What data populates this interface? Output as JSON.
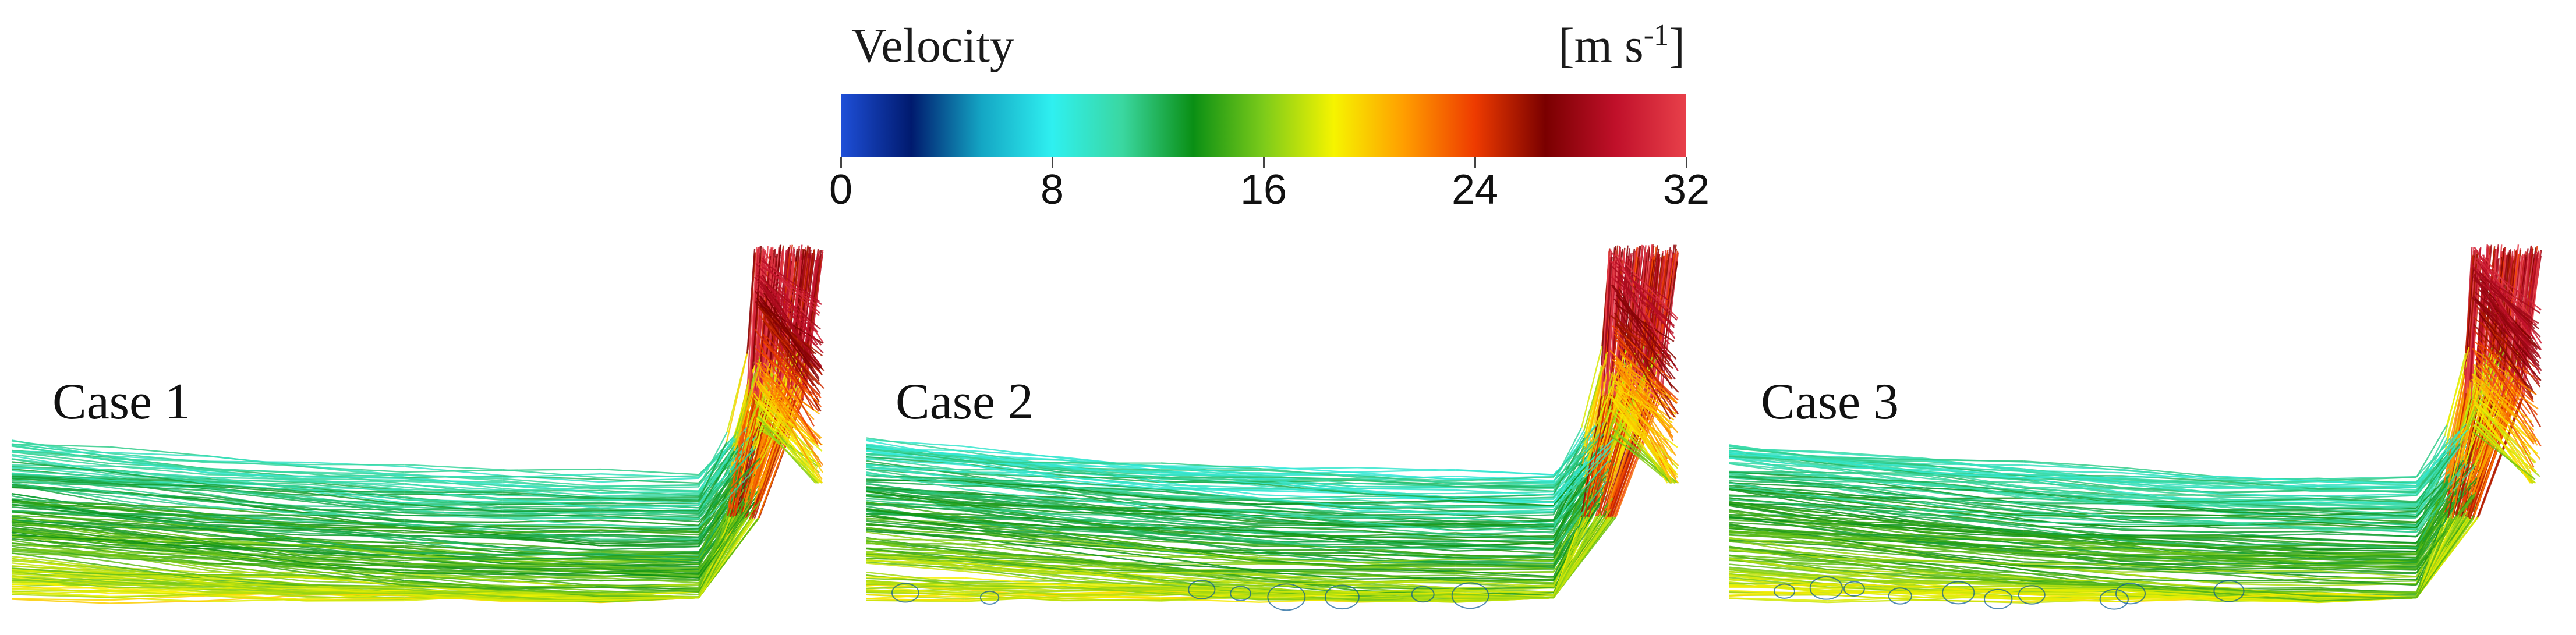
{
  "legend": {
    "title": "Velocity",
    "unit_base": "[m s",
    "unit_sup": "-1",
    "unit_close": "]",
    "ticks": [
      "0",
      "8",
      "16",
      "24",
      "32"
    ],
    "min": 0,
    "max": 32,
    "colors": [
      "#1e4fd8",
      "#001a6e",
      "#14a6c4",
      "#2ff0f0",
      "#3ad7a0",
      "#0a8f14",
      "#7ccb1a",
      "#f6f400",
      "#ff9d00",
      "#ee3b00",
      "#7a0000",
      "#c0102a",
      "#e8404a"
    ]
  },
  "panels": [
    {
      "label": "Case 1"
    },
    {
      "label": "Case 2"
    },
    {
      "label": "Case 3"
    }
  ]
}
